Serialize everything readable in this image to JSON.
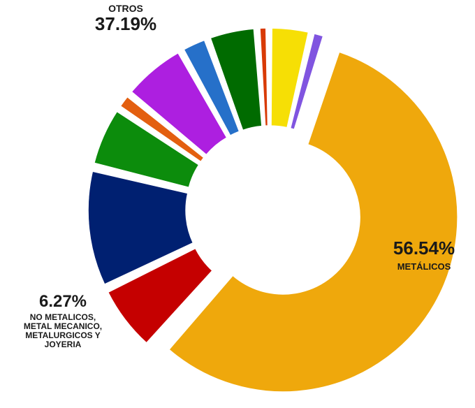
{
  "colors": {
    "background": "#ffffff",
    "text": "#1a1a1a"
  },
  "chart_data": {
    "type": "pie",
    "variant": "donut, exploded slices",
    "slices": [
      {
        "value": 56.54,
        "color": "#efa80c"
      },
      {
        "value": 6.27,
        "color": "#c50000"
      },
      {
        "value": 11.0,
        "color": "#002071"
      },
      {
        "value": 5.6,
        "color": "#0c8c0c"
      },
      {
        "value": 1.5,
        "color": "#e35f10"
      },
      {
        "value": 6.0,
        "color": "#ad1fe0"
      },
      {
        "value": 2.5,
        "color": "#2670c9"
      },
      {
        "value": 4.5,
        "color": "#006b00"
      },
      {
        "value": 1.0,
        "color": "#d83a06"
      },
      {
        "value": 3.8,
        "color": "#f6df05"
      },
      {
        "value": 1.29,
        "color": "#8055e0"
      }
    ],
    "labels": {
      "metalicos": {
        "percent": "56.54%",
        "text": "METÁLICOS"
      },
      "no_metalicos": {
        "percent": "6.27%",
        "lines": [
          "NO METALICOS,",
          "METAL MECANICO,",
          "METALURGICOS Y",
          "JOYERIA"
        ]
      },
      "otros": {
        "percent": "37.19%",
        "text": "OTROS"
      }
    }
  }
}
